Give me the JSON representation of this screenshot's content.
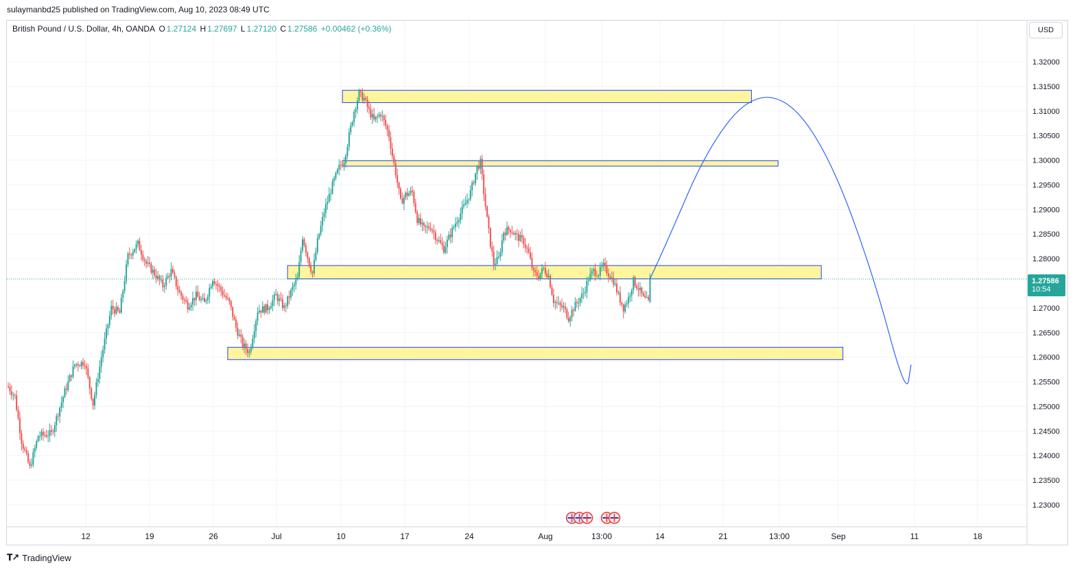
{
  "publisher": "sulaymanbd25 published on TradingView.com, Aug 10, 2023 08:49 UTC",
  "symbol": {
    "title": "British Pound / U.S. Dollar, 4h, OANDA",
    "o_key": "O",
    "o_val": "1.27124",
    "h_key": "H",
    "h_val": "1.27697",
    "l_key": "L",
    "l_val": "1.27120",
    "c_key": "C",
    "c_val": "1.27586",
    "change": "+0.00462 (+0.36%)"
  },
  "currency": "USD",
  "last_price": {
    "price": "1.27586",
    "countdown": "10:54",
    "color": "#26a69a"
  },
  "brand": "TradingView",
  "colors": {
    "up": "#26a69a",
    "down": "#ef5350",
    "zone_fill": "#fff59d",
    "zone_border": "#1e40ff",
    "curve": "#2962ff"
  },
  "chart_data": {
    "type": "candlestick",
    "ylim": [
      1.2255,
      1.3245
    ],
    "y_ticks": [
      "1.32000",
      "1.31500",
      "1.31000",
      "1.30500",
      "1.30000",
      "1.29500",
      "1.29000",
      "1.28500",
      "1.28000",
      "1.27000",
      "1.26500",
      "1.26000",
      "1.25500",
      "1.25000",
      "1.24500",
      "1.24000",
      "1.23500",
      "1.23000"
    ],
    "x_ticks": [
      "12",
      "19",
      "26",
      "Jul",
      "10",
      "17",
      "24",
      "Aug",
      "13:00",
      "14",
      "21",
      "13:00",
      "Sep",
      "11",
      "18"
    ],
    "price_anchors": [
      {
        "t": 0,
        "p": 1.254
      },
      {
        "t": 4,
        "p": 1.252
      },
      {
        "t": 8,
        "p": 1.243
      },
      {
        "t": 13,
        "p": 1.2375
      },
      {
        "t": 18,
        "p": 1.244
      },
      {
        "t": 26,
        "p": 1.2445
      },
      {
        "t": 34,
        "p": 1.253
      },
      {
        "t": 40,
        "p": 1.2585
      },
      {
        "t": 46,
        "p": 1.259
      },
      {
        "t": 51,
        "p": 1.2505
      },
      {
        "t": 56,
        "p": 1.26
      },
      {
        "t": 62,
        "p": 1.27
      },
      {
        "t": 67,
        "p": 1.269
      },
      {
        "t": 72,
        "p": 1.2805
      },
      {
        "t": 78,
        "p": 1.283
      },
      {
        "t": 83,
        "p": 1.279
      },
      {
        "t": 88,
        "p": 1.277
      },
      {
        "t": 93,
        "p": 1.2745
      },
      {
        "t": 98,
        "p": 1.2775
      },
      {
        "t": 103,
        "p": 1.273
      },
      {
        "t": 108,
        "p": 1.2705
      },
      {
        "t": 113,
        "p": 1.2725
      },
      {
        "t": 118,
        "p": 1.271
      },
      {
        "t": 123,
        "p": 1.276
      },
      {
        "t": 128,
        "p": 1.2735
      },
      {
        "t": 133,
        "p": 1.271
      },
      {
        "t": 137,
        "p": 1.266
      },
      {
        "t": 141,
        "p": 1.2625
      },
      {
        "t": 145,
        "p": 1.261
      },
      {
        "t": 150,
        "p": 1.2695
      },
      {
        "t": 156,
        "p": 1.27
      },
      {
        "t": 161,
        "p": 1.2725
      },
      {
        "t": 166,
        "p": 1.27
      },
      {
        "t": 171,
        "p": 1.274
      },
      {
        "t": 174,
        "p": 1.276
      },
      {
        "t": 177,
        "p": 1.2845
      },
      {
        "t": 181,
        "p": 1.279
      },
      {
        "t": 183,
        "p": 1.277
      },
      {
        "t": 186,
        "p": 1.2835
      },
      {
        "t": 190,
        "p": 1.2895
      },
      {
        "t": 195,
        "p": 1.295
      },
      {
        "t": 199,
        "p": 1.2985
      },
      {
        "t": 202,
        "p": 1.3
      },
      {
        "t": 205,
        "p": 1.305
      },
      {
        "t": 208,
        "p": 1.31
      },
      {
        "t": 211,
        "p": 1.3135
      },
      {
        "t": 214,
        "p": 1.3125
      },
      {
        "t": 217,
        "p": 1.31
      },
      {
        "t": 220,
        "p": 1.308
      },
      {
        "t": 224,
        "p": 1.3095
      },
      {
        "t": 227,
        "p": 1.307
      },
      {
        "t": 229,
        "p": 1.305
      },
      {
        "t": 231,
        "p": 1.301
      },
      {
        "t": 233,
        "p": 1.2975
      },
      {
        "t": 236,
        "p": 1.2915
      },
      {
        "t": 239,
        "p": 1.293
      },
      {
        "t": 243,
        "p": 1.2935
      },
      {
        "t": 246,
        "p": 1.288
      },
      {
        "t": 250,
        "p": 1.286
      },
      {
        "t": 254,
        "p": 1.2865
      },
      {
        "t": 258,
        "p": 1.284
      },
      {
        "t": 262,
        "p": 1.282
      },
      {
        "t": 266,
        "p": 1.285
      },
      {
        "t": 270,
        "p": 1.288
      },
      {
        "t": 274,
        "p": 1.2905
      },
      {
        "t": 278,
        "p": 1.2935
      },
      {
        "t": 282,
        "p": 1.2985
      },
      {
        "t": 284,
        "p": 1.2995
      },
      {
        "t": 286,
        "p": 1.2935
      },
      {
        "t": 288,
        "p": 1.288
      },
      {
        "t": 290,
        "p": 1.283
      },
      {
        "t": 292,
        "p": 1.279
      },
      {
        "t": 295,
        "p": 1.28
      },
      {
        "t": 298,
        "p": 1.2855
      },
      {
        "t": 302,
        "p": 1.286
      },
      {
        "t": 306,
        "p": 1.2845
      },
      {
        "t": 310,
        "p": 1.2835
      },
      {
        "t": 313,
        "p": 1.281
      },
      {
        "t": 316,
        "p": 1.277
      },
      {
        "t": 319,
        "p": 1.2765
      },
      {
        "t": 322,
        "p": 1.278
      },
      {
        "t": 325,
        "p": 1.2765
      },
      {
        "t": 328,
        "p": 1.2715
      },
      {
        "t": 331,
        "p": 1.2705
      },
      {
        "t": 334,
        "p": 1.27
      },
      {
        "t": 337,
        "p": 1.268
      },
      {
        "t": 340,
        "p": 1.27
      },
      {
        "t": 343,
        "p": 1.2715
      },
      {
        "t": 346,
        "p": 1.273
      },
      {
        "t": 349,
        "p": 1.276
      },
      {
        "t": 352,
        "p": 1.2775
      },
      {
        "t": 355,
        "p": 1.277
      },
      {
        "t": 358,
        "p": 1.2785
      },
      {
        "t": 361,
        "p": 1.277
      },
      {
        "t": 364,
        "p": 1.2755
      },
      {
        "t": 367,
        "p": 1.2725
      },
      {
        "t": 370,
        "p": 1.27
      },
      {
        "t": 373,
        "p": 1.272
      },
      {
        "t": 376,
        "p": 1.2755
      },
      {
        "t": 379,
        "p": 1.274
      },
      {
        "t": 382,
        "p": 1.272
      },
      {
        "t": 385,
        "p": 1.2712
      },
      {
        "t": 386,
        "p": 1.2759
      }
    ],
    "zones": [
      {
        "t1": 201,
        "t2": 447,
        "top": 1.3142,
        "bottom": 1.3117
      },
      {
        "t1": 201,
        "t2": 463,
        "top": 1.2999,
        "bottom": 1.2988
      },
      {
        "t1": 168,
        "t2": 489,
        "top": 1.2786,
        "bottom": 1.2759
      },
      {
        "t1": 132,
        "t2": 502,
        "top": 1.262,
        "bottom": 1.2595
      }
    ],
    "projection": [
      {
        "t": 386,
        "p": 1.2759
      },
      {
        "t": 397,
        "p": 1.284
      },
      {
        "t": 420,
        "p": 1.302
      },
      {
        "t": 445,
        "p": 1.313
      },
      {
        "t": 470,
        "p": 1.3125
      },
      {
        "t": 495,
        "p": 1.3
      },
      {
        "t": 520,
        "p": 1.277
      },
      {
        "t": 540,
        "p": 1.252
      },
      {
        "t": 543,
        "p": 1.2585
      }
    ],
    "events": [
      {
        "t": 339,
        "flags": [
          "us",
          "us",
          "gb"
        ]
      },
      {
        "t": 360,
        "flags": [
          "gb",
          "gb"
        ]
      }
    ]
  }
}
